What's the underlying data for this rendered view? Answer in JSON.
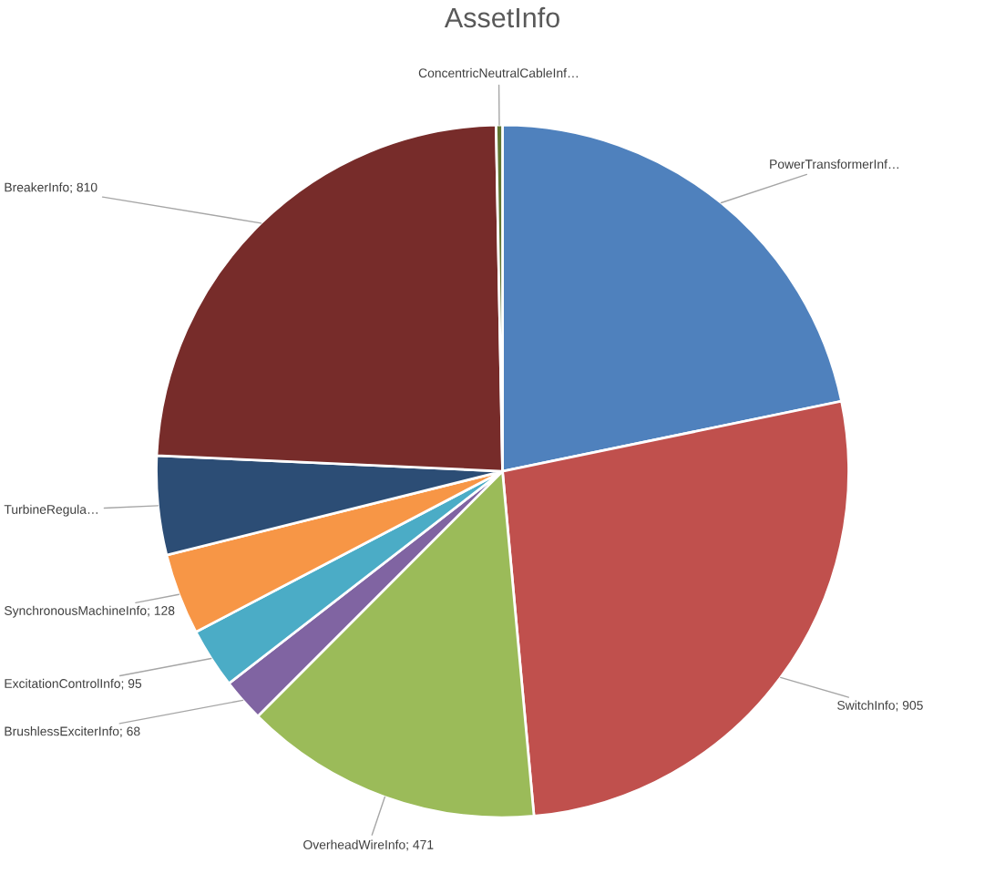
{
  "chart_data": {
    "type": "pie",
    "title": "AssetInfo",
    "categories": [
      "PowerTransformerInf…",
      "SwitchInfo",
      "OverheadWireInfo",
      "BrushlessExciterInfo",
      "ExcitationControlInfo",
      "SynchronousMachineInfo",
      "TurbineRegula…",
      "BreakerInfo",
      "ConcentricNeutralCableInf…"
    ],
    "values": [
      735,
      905,
      471,
      68,
      95,
      128,
      156,
      810,
      10
    ],
    "value_labels": [
      null,
      "905",
      "471",
      "68",
      "95",
      "128",
      null,
      "810",
      null
    ],
    "colors": [
      "#4f81bd",
      "#c0504d",
      "#9bbb59",
      "#8064a2",
      "#4bacc6",
      "#f79646",
      "#2c4d75",
      "#772c2a",
      "#5f7530"
    ],
    "legend": false
  }
}
